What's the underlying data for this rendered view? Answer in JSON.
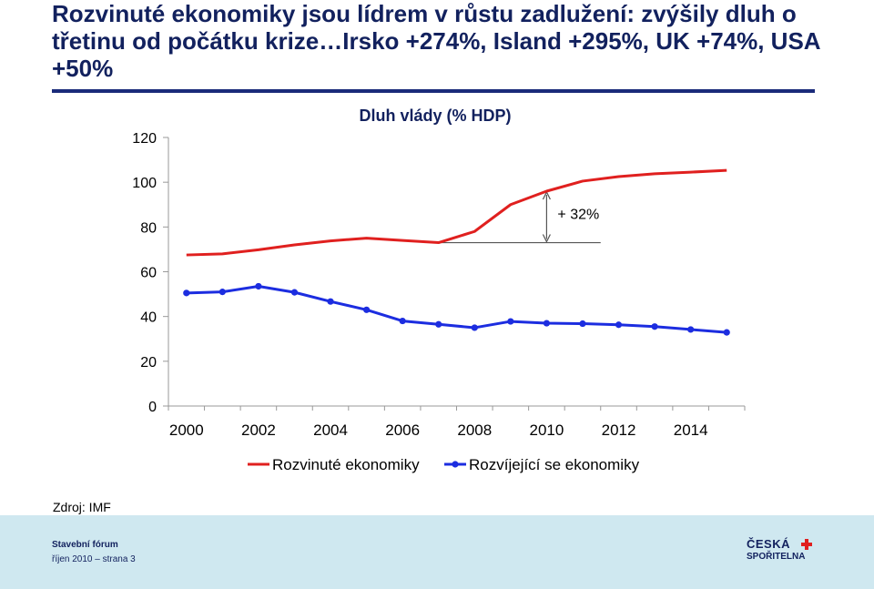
{
  "slide": {
    "title": "Rozvinuté ekonomiky jsou lídrem v růstu zadlužení: zvýšily dluh o třetinu od počátku krize…Irsko +274%, Island +295%, UK +74%, USA +50%",
    "source": "Zdroj: IMF",
    "footer_name": "Stavební fórum",
    "footer_date": "říjen 2010 – strana 3",
    "logo_line1": "ČESKÁ",
    "logo_line2": "SPOŘITELNA"
  },
  "colors": {
    "title": "#12215e",
    "advanced": "#e0201f",
    "emerging": "#1c2de0",
    "footer_band": "#cfe8f0"
  },
  "chart_data": {
    "type": "line",
    "title": "Dluh vlády (% HDP)",
    "x": [
      2000,
      2001,
      2002,
      2003,
      2004,
      2005,
      2006,
      2007,
      2008,
      2009,
      2010,
      2011,
      2012,
      2013,
      2014,
      2015
    ],
    "x_tick_labels": [
      "2000",
      "2002",
      "2004",
      "2006",
      "2008",
      "2010",
      "2012",
      "2014"
    ],
    "y_ticks": [
      0,
      20,
      40,
      60,
      80,
      100,
      120
    ],
    "ylim": [
      0,
      120
    ],
    "grid": false,
    "legend_position": "bottom",
    "series": [
      {
        "name": "Rozvinuté ekonomiky",
        "color": "#e0201f",
        "marker": "none",
        "values": [
          67.5,
          68,
          69.8,
          72,
          73.8,
          75,
          74,
          73,
          78,
          90,
          96,
          100.5,
          102.5,
          103.8,
          104.5,
          105.3
        ]
      },
      {
        "name": "Rozvíjející se ekonomiky",
        "color": "#1c2de0",
        "marker": "circle",
        "values": [
          50.5,
          51,
          53.5,
          50.8,
          46.7,
          43,
          38,
          36.5,
          35,
          37.8,
          37,
          36.8,
          36.3,
          35.5,
          34.2,
          32.9
        ]
      }
    ],
    "annotation": {
      "text": "+ 32%",
      "from_x": 2007,
      "from_y": 73,
      "to_x": 2010,
      "to_y": 96
    }
  }
}
